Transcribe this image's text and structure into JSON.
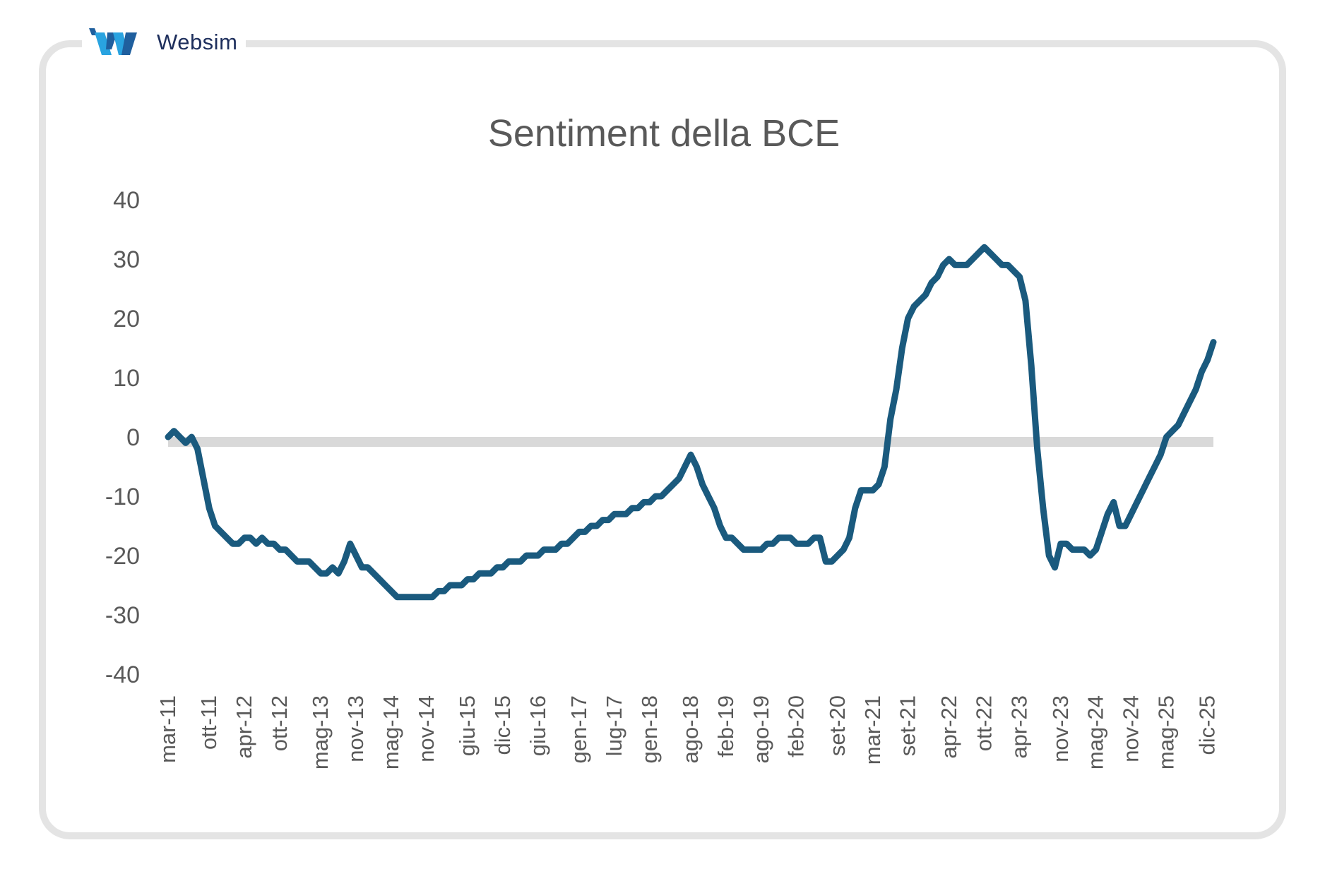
{
  "brand": {
    "name": "Websim",
    "colors": {
      "text": "#1d2e5c",
      "light": "#29a3e0",
      "dark": "#1f5f9e"
    }
  },
  "colors": {
    "series": "#1a5a7e",
    "zero_line": "#d9d9d9",
    "frame": "#e4e4e4",
    "text": "#595959"
  },
  "chart_data": {
    "type": "line",
    "title": "Sentiment della BCE",
    "xlabel": "",
    "ylabel": "",
    "ylim": [
      -40,
      40
    ],
    "yticks": [
      40,
      30,
      20,
      10,
      0,
      -10,
      -20,
      -30,
      -40
    ],
    "grid": false,
    "legend": "none",
    "reference_line": 0,
    "x_tick_labels": [
      "mar-11",
      "ott-11",
      "apr-12",
      "ott-12",
      "mag-13",
      "nov-13",
      "mag-14",
      "nov-14",
      "giu-15",
      "dic-15",
      "giu-16",
      "gen-17",
      "lug-17",
      "gen-18",
      "ago-18",
      "feb-19",
      "ago-19",
      "feb-20",
      "set-20",
      "mar-21",
      "set-21",
      "apr-22",
      "ott-22",
      "apr-23",
      "nov-23",
      "mag-24",
      "nov-24",
      "mag-25",
      "dic-25"
    ],
    "x_tick_positions": [
      0,
      7,
      13,
      19,
      26,
      32,
      38,
      44,
      51,
      57,
      63,
      70,
      76,
      82,
      89,
      95,
      101,
      107,
      114,
      120,
      126,
      133,
      139,
      145,
      152,
      158,
      164,
      170,
      177
    ],
    "x_start": "2011-03",
    "x_end": "2026-05",
    "series": [
      {
        "values": [
          0,
          1,
          0,
          -1,
          0,
          -2,
          -7,
          -12,
          -15,
          -16,
          -17,
          -18,
          -18,
          -17,
          -17,
          -18,
          -17,
          -18,
          -18,
          -19,
          -19,
          -20,
          -21,
          -21,
          -21,
          -22,
          -23,
          -23,
          -22,
          -23,
          -21,
          -18,
          -20,
          -22,
          -22,
          -23,
          -24,
          -25,
          -26,
          -27,
          -27,
          -27,
          -27,
          -27,
          -27,
          -27,
          -26,
          -26,
          -25,
          -25,
          -25,
          -24,
          -24,
          -23,
          -23,
          -23,
          -22,
          -22,
          -21,
          -21,
          -21,
          -20,
          -20,
          -20,
          -19,
          -19,
          -19,
          -18,
          -18,
          -17,
          -16,
          -16,
          -15,
          -15,
          -14,
          -14,
          -13,
          -13,
          -13,
          -12,
          -12,
          -11,
          -11,
          -10,
          -10,
          -9,
          -8,
          -7,
          -5,
          -3,
          -5,
          -8,
          -10,
          -12,
          -15,
          -17,
          -17,
          -18,
          -19,
          -19,
          -19,
          -19,
          -18,
          -18,
          -17,
          -17,
          -17,
          -18,
          -18,
          -18,
          -17,
          -17,
          -21,
          -21,
          -20,
          -19,
          -17,
          -12,
          -9,
          -9,
          -9,
          -8,
          -5,
          3,
          8,
          15,
          20,
          22,
          23,
          24,
          26,
          27,
          29,
          30,
          29,
          29,
          29,
          30,
          31,
          32,
          31,
          30,
          29,
          29,
          28,
          27,
          23,
          12,
          -2,
          -12,
          -20,
          -22,
          -18,
          -18,
          -19,
          -19,
          -19,
          -20,
          -19,
          -16,
          -13,
          -11,
          -15,
          -15,
          -13,
          -11,
          -9,
          -7,
          -5,
          -3,
          0,
          1,
          2,
          4,
          6,
          8,
          11,
          13,
          16
        ]
      }
    ]
  }
}
